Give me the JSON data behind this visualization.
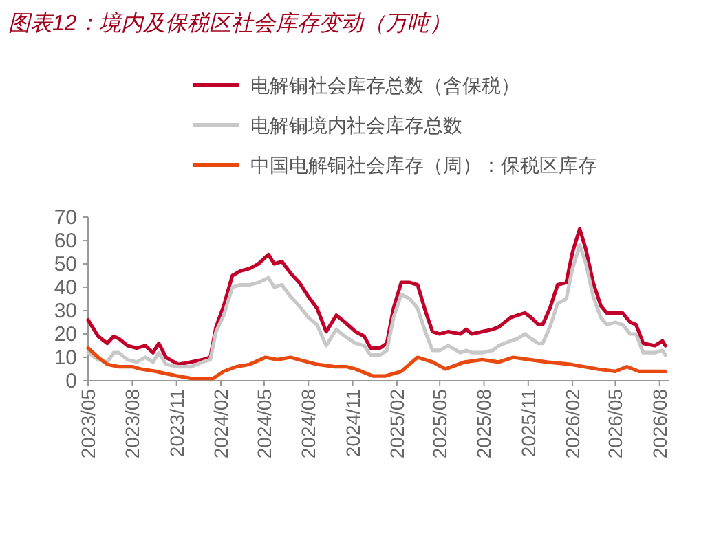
{
  "chart_data": {
    "type": "line",
    "title": "图表12：境内及保税区社会库存变动（万吨）",
    "legend": "top",
    "xlim": [
      "2023-05-01",
      "2026-08-20"
    ],
    "xticks": [
      {
        "value": "2023-05",
        "label": "2023/05"
      },
      {
        "value": "2023-08",
        "label": "2023/08"
      },
      {
        "value": "2023-11",
        "label": "2023/11"
      },
      {
        "value": "2024-02",
        "label": "2024/02"
      },
      {
        "value": "2024-05",
        "label": "2024/05"
      },
      {
        "value": "2024-08",
        "label": "2024/08"
      },
      {
        "value": "2024-11",
        "label": "2024/11"
      },
      {
        "value": "2025-02",
        "label": "2025/02"
      },
      {
        "value": "2025-05",
        "label": "2025/05"
      },
      {
        "value": "2025-08",
        "label": "2025/08"
      },
      {
        "value": "2025-11",
        "label": "2025/11"
      },
      {
        "value": "2026-02",
        "label": "2026/02"
      },
      {
        "value": "2026-05",
        "label": "2026/05"
      },
      {
        "value": "2026-08",
        "label": "2026/08"
      }
    ],
    "ylim": [
      0,
      70
    ],
    "yticks": [
      0,
      10,
      20,
      30,
      40,
      50,
      60,
      70
    ],
    "x": [
      "2023-05-01",
      "2023-05-22",
      "2023-06-10",
      "2023-06-23",
      "2023-07-04",
      "2023-07-22",
      "2023-08-10",
      "2023-08-28",
      "2023-09-13",
      "2023-09-25",
      "2023-10-10",
      "2023-11-04",
      "2023-12-01",
      "2023-12-25",
      "2024-01-10",
      "2024-01-22",
      "2024-02-07",
      "2024-02-25",
      "2024-03-13",
      "2024-04-01",
      "2024-04-19",
      "2024-05-10",
      "2024-05-22",
      "2024-06-07",
      "2024-06-25",
      "2024-07-13",
      "2024-08-01",
      "2024-08-19",
      "2024-09-07",
      "2024-09-28",
      "2024-10-16",
      "2024-11-07",
      "2024-11-25",
      "2024-12-08",
      "2024-12-28",
      "2025-01-11",
      "2025-01-25",
      "2025-02-10",
      "2025-02-28",
      "2025-03-16",
      "2025-04-01",
      "2025-04-16",
      "2025-05-01",
      "2025-05-19",
      "2025-06-13",
      "2025-06-25",
      "2025-07-07",
      "2025-07-28",
      "2025-08-19",
      "2025-09-01",
      "2025-09-25",
      "2025-10-10",
      "2025-10-25",
      "2025-11-07",
      "2025-11-22",
      "2025-12-01",
      "2025-12-16",
      "2026-01-01",
      "2026-01-19",
      "2026-02-01",
      "2026-02-16",
      "2026-03-01",
      "2026-03-16",
      "2026-04-01",
      "2026-04-13",
      "2026-05-01",
      "2026-05-16",
      "2026-06-01",
      "2026-06-13",
      "2026-06-28",
      "2026-07-22",
      "2026-08-07",
      "2026-08-13"
    ],
    "series": [
      {
        "name": "电解铜社会库存总数（含保税）",
        "color": "#c0002a",
        "values": [
          26,
          19,
          16,
          19,
          18,
          15,
          14,
          15,
          12,
          16,
          10,
          7,
          8,
          9,
          10,
          23,
          32,
          45,
          47,
          48,
          50,
          54,
          50,
          51,
          46,
          42,
          36,
          31,
          21,
          28,
          25,
          21,
          19,
          14,
          14,
          16,
          31,
          42,
          42,
          41,
          30,
          21,
          20,
          21,
          20,
          22,
          20,
          21,
          22,
          23,
          27,
          28,
          29,
          27,
          24,
          24,
          31,
          41,
          42,
          55,
          65,
          56,
          42,
          32,
          29,
          29,
          29,
          25,
          24,
          16,
          15,
          17,
          15
        ]
      },
      {
        "name": "电解铜境内社会库存总数",
        "color": "#c8c8c8",
        "values": [
          12,
          9,
          8,
          12,
          12,
          9,
          8,
          10,
          8,
          12,
          7,
          6,
          6,
          8,
          9,
          21,
          28,
          40,
          41,
          41,
          42,
          44,
          40,
          41,
          36,
          32,
          27,
          24,
          15,
          22,
          19,
          16,
          15,
          11,
          11,
          13,
          27,
          37,
          35,
          31,
          21,
          13,
          13,
          15,
          12,
          13,
          12,
          12,
          13,
          15,
          17,
          18,
          20,
          18,
          16,
          16,
          23,
          33,
          35,
          48,
          58,
          50,
          36,
          27,
          24,
          25,
          24,
          20,
          20,
          12,
          12,
          13,
          11
        ]
      },
      {
        "name": "中国电解铜社会库存（周）：保税区库存",
        "color": "#e8490f",
        "x": [
          "2023-05-01",
          "2023-05-22",
          "2023-06-10",
          "2023-07-04",
          "2023-08-01",
          "2023-08-19",
          "2023-09-19",
          "2023-10-10",
          "2023-11-04",
          "2023-12-01",
          "2023-12-28",
          "2024-01-16",
          "2024-02-07",
          "2024-03-04",
          "2024-04-01",
          "2024-05-04",
          "2024-05-28",
          "2024-06-25",
          "2024-07-13",
          "2024-08-19",
          "2024-09-25",
          "2024-10-19",
          "2024-11-07",
          "2024-12-13",
          "2025-01-07",
          "2025-02-10",
          "2025-03-16",
          "2025-04-16",
          "2025-05-13",
          "2025-06-22",
          "2025-07-28",
          "2025-09-01",
          "2025-10-01",
          "2025-11-04",
          "2025-12-10",
          "2026-01-28",
          "2026-03-25",
          "2026-05-01",
          "2026-05-25",
          "2026-06-19",
          "2026-07-25",
          "2026-08-13"
        ],
        "values": [
          14,
          10,
          7,
          6,
          6,
          5,
          4,
          3,
          2,
          1,
          1,
          1,
          4,
          6,
          7,
          10,
          9,
          10,
          9,
          7,
          6,
          6,
          5,
          2,
          2,
          4,
          10,
          8,
          5,
          8,
          9,
          8,
          10,
          9,
          8,
          7,
          5,
          4,
          6,
          4,
          4,
          4
        ]
      }
    ]
  }
}
